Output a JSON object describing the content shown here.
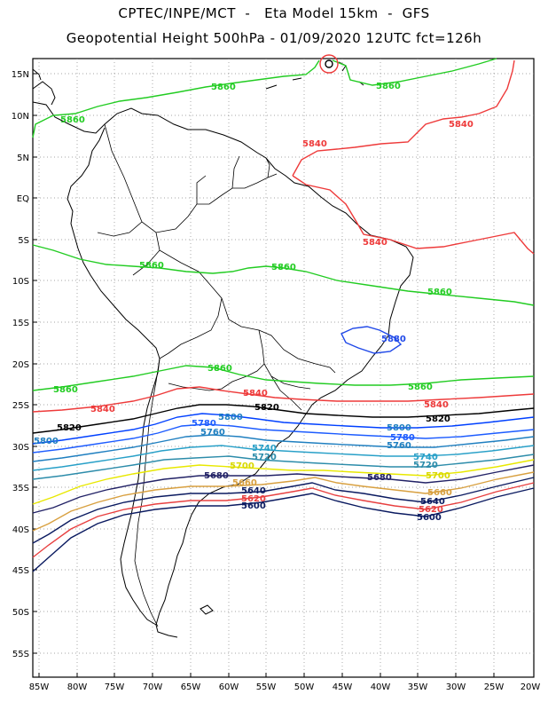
{
  "header": {
    "line1": "CPTEC/INPE/MCT  -   Eta Model 15km  -  GFS",
    "line2": "Geopotential Height 500hPa - 01/09/2020 12UTC fct=126h"
  },
  "map": {
    "lat_labels": [
      "15N",
      "10N",
      "5N",
      "EQ",
      "5S",
      "10S",
      "15S",
      "20S",
      "25S",
      "30S",
      "35S",
      "40S",
      "45S",
      "50S",
      "55S"
    ],
    "lon_labels": [
      "85W",
      "80W",
      "75W",
      "70W",
      "65W",
      "60W",
      "55W",
      "50W",
      "45W",
      "40W",
      "35W",
      "30W",
      "25W",
      "20W"
    ],
    "contours": [
      {
        "value": "5880",
        "color": "#1f48e8",
        "labels": [
          "5880"
        ]
      },
      {
        "value": "5860",
        "color": "#22cc22",
        "labels": [
          "5860",
          "5860",
          "5860",
          "5860",
          "5860",
          "5860",
          "5860",
          "5860",
          "5860"
        ]
      },
      {
        "value": "5840",
        "color": "#ee3a3a",
        "labels": [
          "5840",
          "5840",
          "5840",
          "5840",
          "5840",
          "5840"
        ]
      },
      {
        "value": "5820",
        "color": "#000000",
        "labels": [
          "5820",
          "5820",
          "5820"
        ]
      },
      {
        "value": "5800",
        "color": "#0040ff",
        "labels": [
          "5800",
          "5800",
          "5800"
        ]
      },
      {
        "value": "5780",
        "color": "#1d5cff",
        "labels": [
          "5780",
          "5780"
        ]
      },
      {
        "value": "5760",
        "color": "#1f7fc0",
        "labels": [
          "5760",
          "5760"
        ]
      },
      {
        "value": "5740",
        "color": "#28a0c8",
        "labels": [
          "5740",
          "5740"
        ]
      },
      {
        "value": "5720",
        "color": "#2c8caa",
        "labels": [
          "5720",
          "5720"
        ]
      },
      {
        "value": "5700",
        "color": "#e8e800",
        "labels": [
          "5700",
          "5700"
        ]
      },
      {
        "value": "5680",
        "color": "#222266",
        "labels": [
          "5680",
          "5680"
        ]
      },
      {
        "value": "5660",
        "color": "#d8a040",
        "labels": [
          "5660",
          "5660"
        ]
      },
      {
        "value": "5640",
        "color": "#0a1a60",
        "labels": [
          "5640",
          "5640"
        ]
      },
      {
        "value": "5620",
        "color": "#e84040",
        "labels": [
          "5620",
          "5620"
        ]
      },
      {
        "value": "5600",
        "color": "#0a1a60",
        "labels": [
          "5600",
          "5600"
        ]
      }
    ]
  }
}
